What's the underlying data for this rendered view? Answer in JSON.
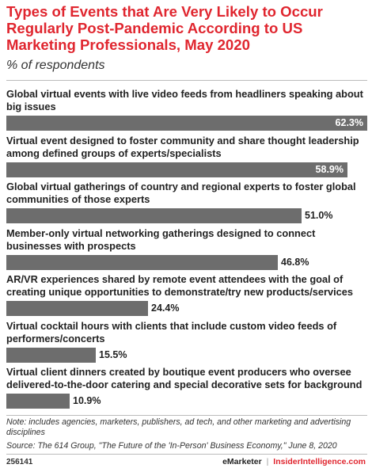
{
  "header": {
    "title": "Types of Events that Are Very Likely to Occur Regularly Post-Pandemic According to US Marketing Professionals, May 2020",
    "subtitle": "% of respondents"
  },
  "chart_data": {
    "type": "bar",
    "orientation": "horizontal",
    "categories": [
      "Global virtual events with live video feeds from headliners speaking about big issues",
      "Virtual event designed to foster community and share thought leadership among defined groups of experts/specialists",
      "Global virtual gatherings of country and regional experts to foster global communities of those experts",
      "Member-only virtual networking gatherings designed to connect businesses with prospects",
      "AR/VR experiences shared by remote event attendees with the goal of creating unique opportunities to demonstrate/try new products/services",
      "Virtual cocktail hours with clients that include custom video feeds of performers/concerts",
      "Virtual client dinners created by boutique event producers who oversee delivered-to-the-door catering and special decorative sets for background"
    ],
    "values": [
      62.3,
      58.9,
      51.0,
      46.8,
      24.4,
      15.5,
      10.9
    ],
    "value_labels": [
      "62.3%",
      "58.9%",
      "51.0%",
      "46.8%",
      "24.4%",
      "15.5%",
      "10.9%"
    ],
    "unit": "%",
    "xlim": [
      0,
      62.3
    ],
    "bar_color": "#6d6d6d",
    "grid": false,
    "legend": "none"
  },
  "footer": {
    "note": "Note: includes agencies, marketers, publishers, ad tech, and other marketing and advertising disciplines",
    "source": "Source: The 614 Group, \"The Future of the 'In-Person' Business Economy,\" June 8, 2020",
    "chart_id": "256141",
    "brand_emarketer": "eMarketer",
    "brand_separator": "|",
    "brand_insider": "InsiderIntelligence.com"
  },
  "colors": {
    "title": "#e0262f",
    "bar": "#6d6d6d",
    "brand_accent": "#e0262f"
  }
}
